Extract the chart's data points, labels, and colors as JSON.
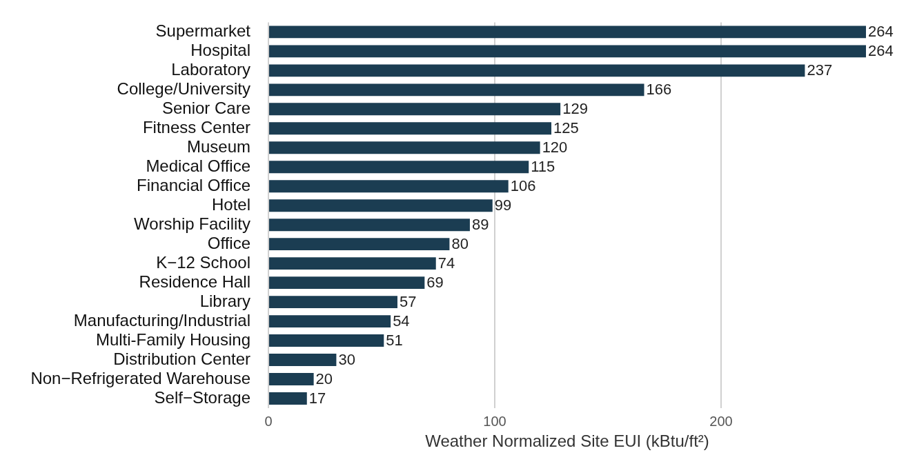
{
  "chart_data": {
    "type": "bar",
    "orientation": "horizontal",
    "xlabel": "Weather Normalized Site EUI (kBtu/ft²)",
    "categories": [
      "Supermarket",
      "Hospital",
      "Laboratory",
      "College/University",
      "Senior Care",
      "Fitness Center",
      "Museum",
      "Medical Office",
      "Financial Office",
      "Hotel",
      "Worship Facility",
      "Office",
      "K−12 School",
      "Residence Hall",
      "Library",
      "Manufacturing/Industrial",
      "Multi-Family Housing",
      "Distribution Center",
      "Non−Refrigerated Warehouse",
      "Self−Storage"
    ],
    "values": [
      264,
      264,
      237,
      166,
      129,
      125,
      120,
      115,
      106,
      99,
      89,
      80,
      74,
      69,
      57,
      54,
      51,
      30,
      20,
      17
    ],
    "color": "#1b3d52",
    "xlim": [
      0,
      264
    ],
    "xticks": [
      0,
      100,
      200
    ],
    "grid": "x",
    "data_labels": true
  }
}
